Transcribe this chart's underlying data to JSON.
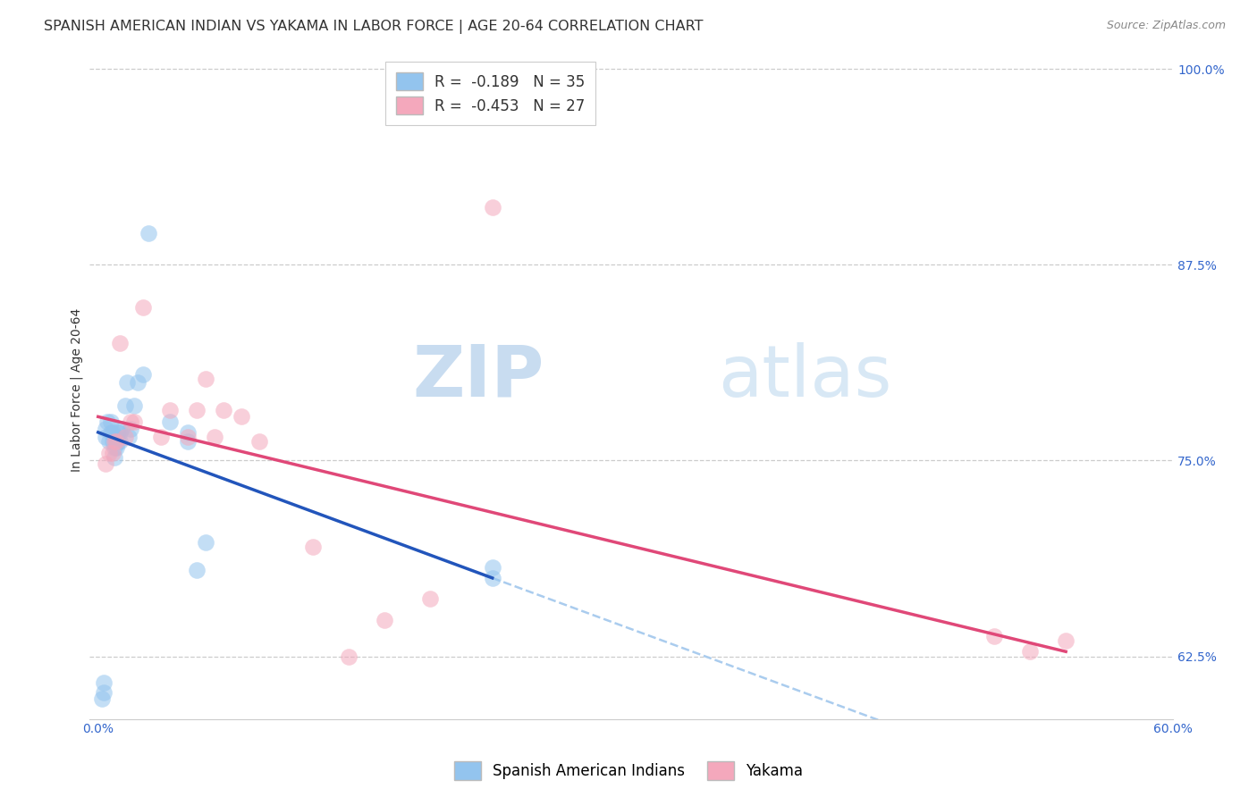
{
  "title": "SPANISH AMERICAN INDIAN VS YAKAMA IN LABOR FORCE | AGE 20-64 CORRELATION CHART",
  "source": "Source: ZipAtlas.com",
  "ylabel": "In Labor Force | Age 20-64",
  "xlim": [
    -0.005,
    0.6
  ],
  "ylim": [
    0.585,
    1.005
  ],
  "xticks": [
    0.0,
    0.1,
    0.2,
    0.3,
    0.4,
    0.5,
    0.6
  ],
  "xticklabels": [
    "0.0%",
    "",
    "",
    "",
    "",
    "",
    "60.0%"
  ],
  "yticks_right": [
    0.625,
    0.75,
    0.875,
    1.0
  ],
  "yticklabels_right": [
    "62.5%",
    "75.0%",
    "87.5%",
    "100.0%"
  ],
  "blue_scatter_x": [
    0.002,
    0.003,
    0.003,
    0.004,
    0.004,
    0.005,
    0.006,
    0.007,
    0.007,
    0.008,
    0.008,
    0.009,
    0.009,
    0.01,
    0.01,
    0.011,
    0.011,
    0.012,
    0.012,
    0.013,
    0.015,
    0.016,
    0.017,
    0.018,
    0.02,
    0.022,
    0.025,
    0.028,
    0.04,
    0.05,
    0.05,
    0.055,
    0.06,
    0.22,
    0.22
  ],
  "blue_scatter_y": [
    0.598,
    0.602,
    0.608,
    0.765,
    0.77,
    0.775,
    0.762,
    0.768,
    0.775,
    0.762,
    0.768,
    0.752,
    0.758,
    0.758,
    0.765,
    0.762,
    0.768,
    0.762,
    0.768,
    0.77,
    0.785,
    0.8,
    0.765,
    0.77,
    0.785,
    0.8,
    0.805,
    0.895,
    0.775,
    0.762,
    0.768,
    0.68,
    0.698,
    0.675,
    0.682
  ],
  "pink_scatter_x": [
    0.004,
    0.006,
    0.008,
    0.009,
    0.01,
    0.012,
    0.015,
    0.018,
    0.02,
    0.025,
    0.035,
    0.04,
    0.05,
    0.055,
    0.06,
    0.065,
    0.07,
    0.08,
    0.09,
    0.12,
    0.14,
    0.16,
    0.185,
    0.22,
    0.5,
    0.52,
    0.54
  ],
  "pink_scatter_y": [
    0.748,
    0.755,
    0.755,
    0.762,
    0.762,
    0.825,
    0.765,
    0.775,
    0.775,
    0.848,
    0.765,
    0.782,
    0.765,
    0.782,
    0.802,
    0.765,
    0.782,
    0.778,
    0.762,
    0.695,
    0.625,
    0.648,
    0.662,
    0.912,
    0.638,
    0.628,
    0.635
  ],
  "blue_line_x": [
    0.0,
    0.22
  ],
  "blue_line_y": [
    0.768,
    0.675
  ],
  "pink_line_x": [
    0.0,
    0.54
  ],
  "pink_line_y": [
    0.778,
    0.628
  ],
  "dashed_line_x": [
    0.22,
    0.6
  ],
  "dashed_line_y": [
    0.675,
    0.515
  ],
  "legend_blue_r": "R =  -0.189",
  "legend_blue_n": "N = 35",
  "legend_pink_r": "R =  -0.453",
  "legend_pink_n": "N = 27",
  "blue_color": "#93C4EE",
  "pink_color": "#F4A8BC",
  "blue_line_color": "#2255BB",
  "pink_line_color": "#E04878",
  "dashed_line_color": "#AACCEE",
  "watermark_zip": "ZIP",
  "watermark_atlas": "atlas",
  "title_fontsize": 11.5,
  "axis_label_fontsize": 10,
  "tick_fontsize": 10,
  "legend_fontsize": 12,
  "scatter_size": 180,
  "scatter_alpha": 0.55
}
